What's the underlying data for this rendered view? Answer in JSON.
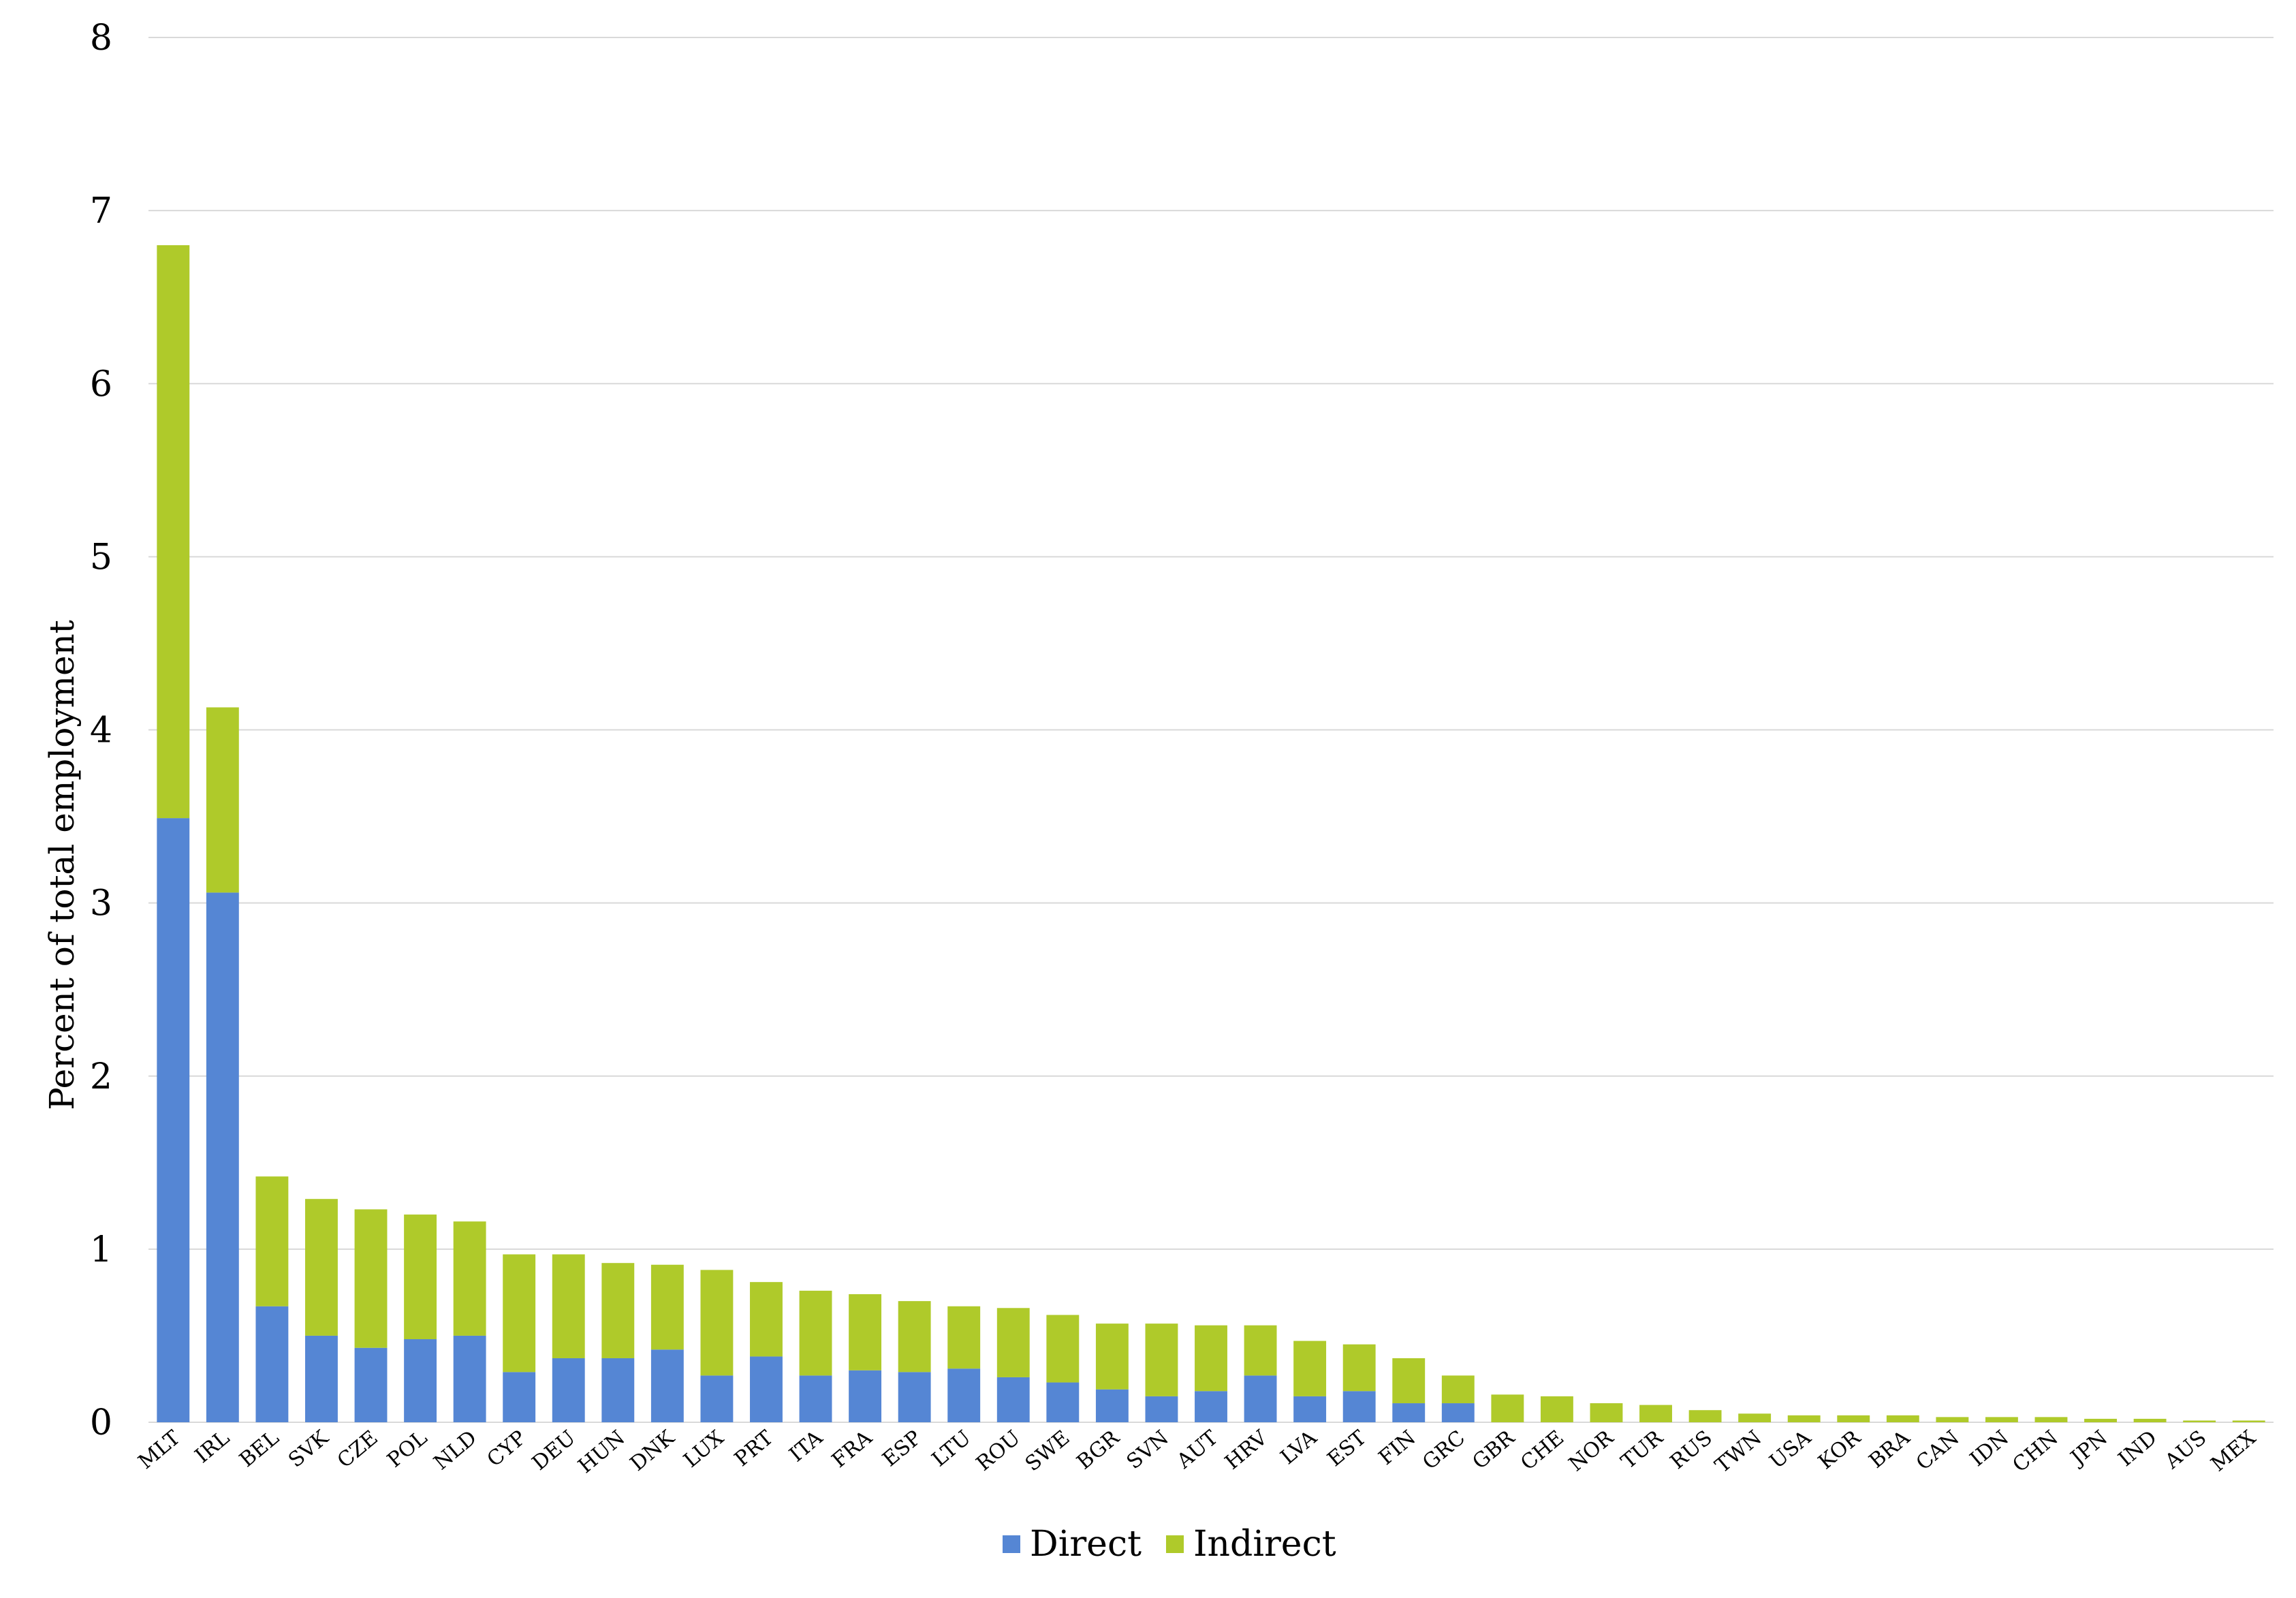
{
  "chart_data": {
    "type": "bar",
    "stacked": true,
    "title": "",
    "xlabel": "",
    "ylabel": "Percent of total employment",
    "ylim": [
      0,
      8
    ],
    "yticks": [
      0,
      1,
      2,
      3,
      4,
      5,
      6,
      7,
      8
    ],
    "grid": true,
    "legend_position": "bottom",
    "categories": [
      "MLT",
      "IRL",
      "BEL",
      "SVK",
      "CZE",
      "POL",
      "NLD",
      "CYP",
      "DEU",
      "HUN",
      "DNK",
      "LUX",
      "PRT",
      "ITA",
      "FRA",
      "ESP",
      "LTU",
      "ROU",
      "SWE",
      "BGR",
      "SVN",
      "AUT",
      "HRV",
      "LVA",
      "EST",
      "FIN",
      "GRC",
      "GBR",
      "CHE",
      "NOR",
      "TUR",
      "RUS",
      "TWN",
      "USA",
      "KOR",
      "BRA",
      "CAN",
      "IDN",
      "CHN",
      "JPN",
      "IND",
      "AUS",
      "MEX"
    ],
    "series": [
      {
        "name": "Direct",
        "color": "#5586d4",
        "values": [
          3.49,
          3.06,
          0.67,
          0.5,
          0.43,
          0.48,
          0.5,
          0.29,
          0.37,
          0.37,
          0.42,
          0.27,
          0.38,
          0.27,
          0.3,
          0.29,
          0.31,
          0.26,
          0.23,
          0.19,
          0.15,
          0.18,
          0.27,
          0.15,
          0.18,
          0.11,
          0.11,
          0,
          0,
          0,
          0,
          0,
          0,
          0,
          0,
          0,
          0,
          0,
          0,
          0,
          0,
          0,
          0
        ]
      },
      {
        "name": "Indirect",
        "color": "#afca2a",
        "values": [
          3.31,
          1.07,
          0.75,
          0.79,
          0.8,
          0.72,
          0.66,
          0.68,
          0.6,
          0.55,
          0.49,
          0.61,
          0.43,
          0.49,
          0.44,
          0.41,
          0.36,
          0.4,
          0.39,
          0.38,
          0.42,
          0.38,
          0.29,
          0.32,
          0.27,
          0.26,
          0.16,
          0.16,
          0.15,
          0.11,
          0.1,
          0.07,
          0.05,
          0.04,
          0.04,
          0.04,
          0.03,
          0.03,
          0.03,
          0.02,
          0.02,
          0.01,
          0.01
        ]
      }
    ]
  }
}
